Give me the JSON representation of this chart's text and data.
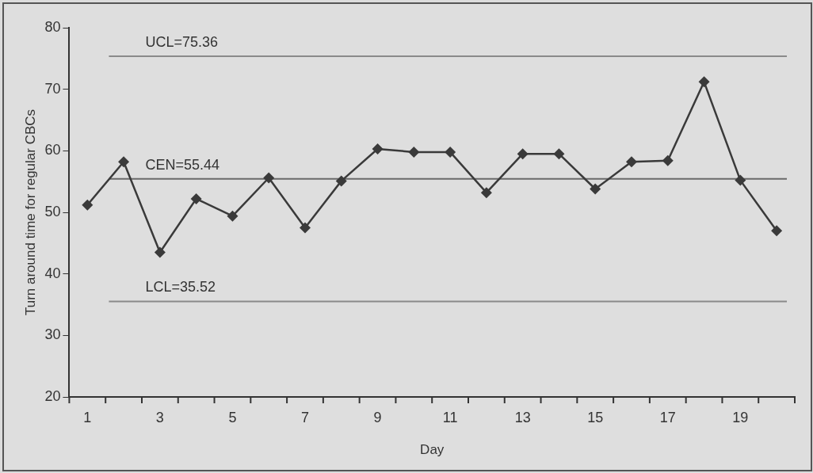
{
  "chart_data": {
    "type": "line",
    "xlabel": "Day",
    "ylabel": "Turn around time for regular CBCs",
    "x": [
      1,
      2,
      3,
      4,
      5,
      6,
      7,
      8,
      9,
      10,
      11,
      12,
      13,
      14,
      15,
      16,
      17,
      18,
      19,
      20
    ],
    "series": [
      {
        "color": "#3a3a3a",
        "values": [
          51.2,
          58.2,
          43.5,
          52.2,
          49.4,
          55.6,
          47.5,
          55.1,
          60.3,
          59.8,
          59.8,
          53.2,
          59.5,
          59.5,
          53.8,
          58.2,
          58.4,
          71.2,
          55.2,
          47.0
        ]
      }
    ],
    "xlim": [
      0.5,
      20.5
    ],
    "xticks": [
      1,
      3,
      5,
      7,
      9,
      11,
      13,
      15,
      17,
      19
    ],
    "ylim": [
      20,
      80
    ],
    "yticks": [
      20,
      30,
      40,
      50,
      60,
      70,
      80
    ],
    "ref_lines": [
      {
        "axis": "y",
        "value": 75.36,
        "label": "UCL=75.36",
        "color": "#8a8a8a"
      },
      {
        "axis": "y",
        "value": 55.44,
        "label": "CEN=55.44",
        "color": "#6a6a6a"
      },
      {
        "axis": "y",
        "value": 35.52,
        "label": "LCL=35.52",
        "color": "#8a8a8a"
      }
    ],
    "grid": false,
    "legend": false,
    "marker": "diamond",
    "line_style": "solid"
  }
}
